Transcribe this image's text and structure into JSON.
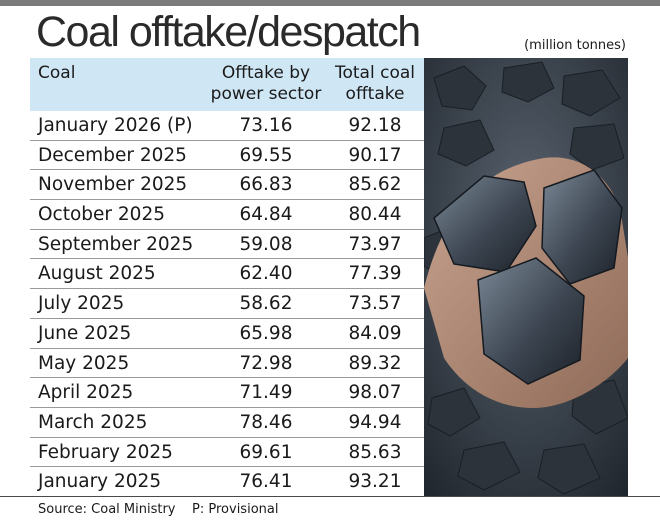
{
  "chart_data": {
    "type": "table",
    "title": "Coal offtake/despatch",
    "units": "(million tonnes)",
    "columns": [
      "Coal",
      "Offtake by power sector",
      "Total coal offtake"
    ],
    "rows": [
      {
        "month": "January 2026 (P)",
        "offtake_power": "73.16",
        "total": "92.18"
      },
      {
        "month": "December 2025",
        "offtake_power": "69.55",
        "total": "90.17"
      },
      {
        "month": "November 2025",
        "offtake_power": "66.83",
        "total": "85.62"
      },
      {
        "month": "October 2025",
        "offtake_power": "64.84",
        "total": "80.44"
      },
      {
        "month": "September 2025",
        "offtake_power": "59.08",
        "total": "73.97"
      },
      {
        "month": "August 2025",
        "offtake_power": "62.40",
        "total": "77.39"
      },
      {
        "month": "July 2025",
        "offtake_power": "58.62",
        "total": "73.57"
      },
      {
        "month": "June 2025",
        "offtake_power": "65.98",
        "total": "84.09"
      },
      {
        "month": "May 2025",
        "offtake_power": "72.98",
        "total": "89.32"
      },
      {
        "month": "April 2025",
        "offtake_power": "71.49",
        "total": "98.07"
      },
      {
        "month": "March 2025",
        "offtake_power": "78.46",
        "total": "94.94"
      },
      {
        "month": "February 2025",
        "offtake_power": "69.61",
        "total": "85.63"
      },
      {
        "month": "January 2025",
        "offtake_power": "76.41",
        "total": "93.21"
      }
    ],
    "source": "Source: Coal Ministry",
    "note": "P: Provisional"
  },
  "header": {
    "col1": "Coal",
    "col2_line1": "Offtake by",
    "col2_line2": "power sector",
    "col3_line1": "Total coal",
    "col3_line2": "offtake"
  },
  "colors": {
    "header_bg": "#cfe6f5",
    "top_bar": "#7b7b7b",
    "coal": "#3d4652"
  }
}
